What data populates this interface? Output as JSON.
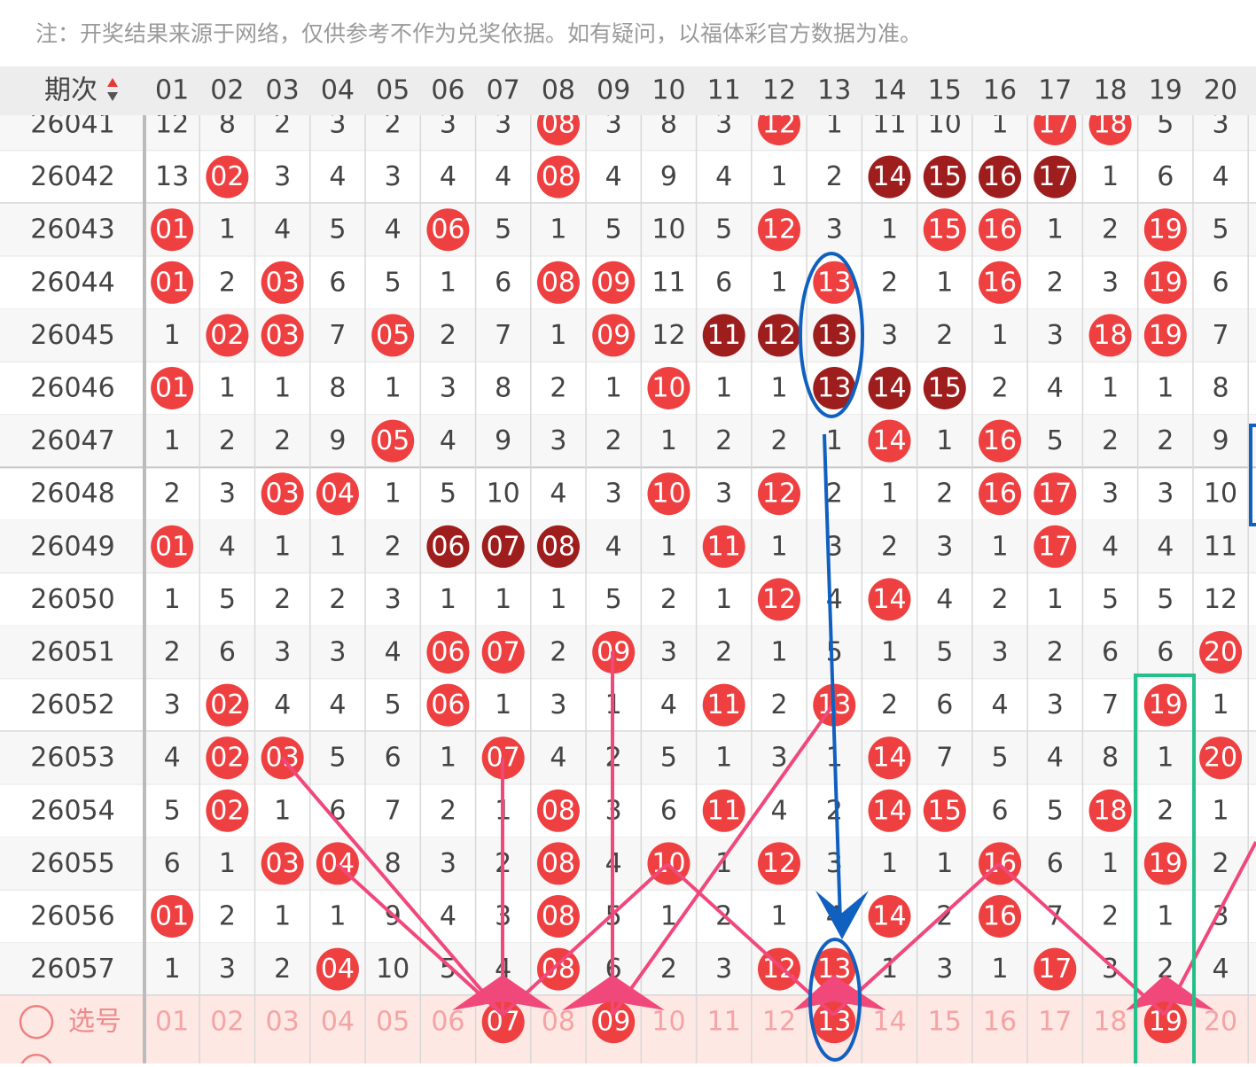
{
  "notice": "注：开奖结果来源于网络，仅供参考不作为兑奖依据。如有疑问，以福体彩官方数据为准。",
  "header": {
    "issue": "期次",
    "columns": [
      "01",
      "02",
      "03",
      "04",
      "05",
      "06",
      "07",
      "08",
      "09",
      "10",
      "11",
      "12",
      "13",
      "14",
      "15",
      "16",
      "17",
      "18",
      "19",
      "20"
    ]
  },
  "rows": [
    {
      "issue": "26041",
      "cells": [
        "12",
        "8",
        "2",
        "3",
        "2",
        "3",
        "3",
        {
          "text": "08",
          "ball": "#ee4040"
        },
        "3",
        "8",
        "3",
        {
          "text": "12",
          "ball": "#ee4040"
        },
        "1",
        "11",
        "10",
        "1",
        {
          "text": "17",
          "ball": "#ee4040"
        },
        {
          "text": "18",
          "ball": "#ee4040"
        },
        "5",
        "3"
      ]
    },
    {
      "issue": "26042",
      "cells": [
        "13",
        {
          "text": "02",
          "ball": "#ee4040"
        },
        "3",
        "4",
        "3",
        "4",
        "4",
        {
          "text": "08",
          "ball": "#ee4040"
        },
        "4",
        "9",
        "4",
        "1",
        "2",
        {
          "text": "14",
          "ball": "#9e1d1d"
        },
        {
          "text": "15",
          "ball": "#9e1d1d"
        },
        {
          "text": "16",
          "ball": "#9e1d1d"
        },
        {
          "text": "17",
          "ball": "#9e1d1d"
        },
        "1",
        "6",
        "4"
      ]
    },
    {
      "issue": "26043",
      "cells": [
        {
          "text": "01",
          "ball": "#ee4040"
        },
        "1",
        "4",
        "5",
        "4",
        {
          "text": "06",
          "ball": "#ee4040"
        },
        "5",
        "1",
        "5",
        "10",
        "5",
        {
          "text": "12",
          "ball": "#ee4040"
        },
        "3",
        "1",
        {
          "text": "15",
          "ball": "#ee4040"
        },
        {
          "text": "16",
          "ball": "#ee4040"
        },
        "1",
        "2",
        {
          "text": "19",
          "ball": "#ee4040"
        },
        "5"
      ]
    },
    {
      "issue": "26044",
      "cells": [
        {
          "text": "01",
          "ball": "#ee4040"
        },
        "2",
        {
          "text": "03",
          "ball": "#ee4040"
        },
        "6",
        "5",
        "1",
        "6",
        {
          "text": "08",
          "ball": "#ee4040"
        },
        {
          "text": "09",
          "ball": "#ee4040"
        },
        "11",
        "6",
        "1",
        {
          "text": "13",
          "ball": "#ee4040"
        },
        "2",
        "1",
        {
          "text": "16",
          "ball": "#ee4040"
        },
        "2",
        "3",
        {
          "text": "19",
          "ball": "#ee4040"
        },
        "6"
      ]
    },
    {
      "issue": "26045",
      "cells": [
        "1",
        {
          "text": "02",
          "ball": "#ee4040"
        },
        {
          "text": "03",
          "ball": "#ee4040"
        },
        "7",
        {
          "text": "05",
          "ball": "#ee4040"
        },
        "2",
        "7",
        "1",
        {
          "text": "09",
          "ball": "#ee4040"
        },
        "12",
        {
          "text": "11",
          "ball": "#9e1d1d"
        },
        {
          "text": "12",
          "ball": "#9e1d1d"
        },
        {
          "text": "13",
          "ball": "#9e1d1d"
        },
        "3",
        "2",
        "1",
        "3",
        {
          "text": "18",
          "ball": "#ee4040"
        },
        {
          "text": "19",
          "ball": "#ee4040"
        },
        "7"
      ]
    },
    {
      "issue": "26046",
      "cells": [
        {
          "text": "01",
          "ball": "#ee4040"
        },
        "1",
        "1",
        "8",
        "1",
        "3",
        "8",
        "2",
        "1",
        {
          "text": "10",
          "ball": "#ee4040"
        },
        "1",
        "1",
        {
          "text": "13",
          "ball": "#9e1d1d"
        },
        {
          "text": "14",
          "ball": "#9e1d1d"
        },
        {
          "text": "15",
          "ball": "#9e1d1d"
        },
        "2",
        "4",
        "1",
        "1",
        "8"
      ]
    },
    {
      "issue": "26047",
      "cells": [
        "1",
        "2",
        "2",
        "9",
        {
          "text": "05",
          "ball": "#ee4040"
        },
        "4",
        "9",
        "3",
        "2",
        "1",
        "2",
        "2",
        "1",
        {
          "text": "14",
          "ball": "#ee4040"
        },
        "1",
        {
          "text": "16",
          "ball": "#ee4040"
        },
        "5",
        "2",
        "2",
        "9"
      ]
    },
    {
      "issue": "26048",
      "cells": [
        "2",
        "3",
        {
          "text": "03",
          "ball": "#ee4040"
        },
        {
          "text": "04",
          "ball": "#ee4040"
        },
        "1",
        "5",
        "10",
        "4",
        "3",
        {
          "text": "10",
          "ball": "#ee4040"
        },
        "3",
        {
          "text": "12",
          "ball": "#ee4040"
        },
        "2",
        "1",
        "2",
        {
          "text": "16",
          "ball": "#ee4040"
        },
        {
          "text": "17",
          "ball": "#ee4040"
        },
        "3",
        "3",
        "10"
      ]
    },
    {
      "issue": "26049",
      "cells": [
        {
          "text": "01",
          "ball": "#ee4040"
        },
        "4",
        "1",
        "1",
        "2",
        {
          "text": "06",
          "ball": "#9e1d1d"
        },
        {
          "text": "07",
          "ball": "#9e1d1d"
        },
        {
          "text": "08",
          "ball": "#9e1d1d"
        },
        "4",
        "1",
        {
          "text": "11",
          "ball": "#ee4040"
        },
        "1",
        "3",
        "2",
        "3",
        "1",
        {
          "text": "17",
          "ball": "#ee4040"
        },
        "4",
        "4",
        "11"
      ]
    },
    {
      "issue": "26050",
      "cells": [
        "1",
        "5",
        "2",
        "2",
        "3",
        "1",
        "1",
        "1",
        "5",
        "2",
        "1",
        {
          "text": "12",
          "ball": "#ee4040"
        },
        "4",
        {
          "text": "14",
          "ball": "#ee4040"
        },
        "4",
        "2",
        "1",
        "5",
        "5",
        "12"
      ]
    },
    {
      "issue": "26051",
      "cells": [
        "2",
        "6",
        "3",
        "3",
        "4",
        {
          "text": "06",
          "ball": "#ee4040"
        },
        {
          "text": "07",
          "ball": "#ee4040"
        },
        "2",
        {
          "text": "09",
          "ball": "#ee4040"
        },
        "3",
        "2",
        "1",
        "5",
        "1",
        "5",
        "3",
        "2",
        "6",
        "6",
        {
          "text": "20",
          "ball": "#ee4040"
        }
      ]
    },
    {
      "issue": "26052",
      "cells": [
        "3",
        {
          "text": "02",
          "ball": "#ee4040"
        },
        "4",
        "4",
        "5",
        {
          "text": "06",
          "ball": "#ee4040"
        },
        "1",
        "3",
        "1",
        "4",
        {
          "text": "11",
          "ball": "#ee4040"
        },
        "2",
        {
          "text": "13",
          "ball": "#ee4040"
        },
        "2",
        "6",
        "4",
        "3",
        "7",
        {
          "text": "19",
          "ball": "#ee4040"
        },
        "1"
      ]
    },
    {
      "issue": "26053",
      "cells": [
        "4",
        {
          "text": "02",
          "ball": "#ee4040"
        },
        {
          "text": "03",
          "ball": "#ee4040"
        },
        "5",
        "6",
        "1",
        {
          "text": "07",
          "ball": "#ee4040"
        },
        "4",
        "2",
        "5",
        "1",
        "3",
        "1",
        {
          "text": "14",
          "ball": "#ee4040"
        },
        "7",
        "5",
        "4",
        "8",
        "1",
        {
          "text": "20",
          "ball": "#ee4040"
        }
      ]
    },
    {
      "issue": "26054",
      "cells": [
        "5",
        {
          "text": "02",
          "ball": "#ee4040"
        },
        "1",
        "6",
        "7",
        "2",
        "1",
        {
          "text": "08",
          "ball": "#ee4040"
        },
        "3",
        "6",
        {
          "text": "11",
          "ball": "#ee4040"
        },
        "4",
        "2",
        {
          "text": "14",
          "ball": "#ee4040"
        },
        {
          "text": "15",
          "ball": "#ee4040"
        },
        "6",
        "5",
        {
          "text": "18",
          "ball": "#ee4040"
        },
        "2",
        "1"
      ]
    },
    {
      "issue": "26055",
      "cells": [
        "6",
        "1",
        {
          "text": "03",
          "ball": "#ee4040"
        },
        {
          "text": "04",
          "ball": "#ee4040"
        },
        "8",
        "3",
        "2",
        {
          "text": "08",
          "ball": "#ee4040"
        },
        "4",
        {
          "text": "10",
          "ball": "#ee4040"
        },
        "1",
        {
          "text": "12",
          "ball": "#ee4040"
        },
        "3",
        "1",
        "1",
        {
          "text": "16",
          "ball": "#ee4040"
        },
        "6",
        "1",
        {
          "text": "19",
          "ball": "#ee4040"
        },
        "2"
      ]
    },
    {
      "issue": "26056",
      "cells": [
        {
          "text": "01",
          "ball": "#ee4040"
        },
        "2",
        "1",
        "1",
        "9",
        "4",
        "3",
        {
          "text": "08",
          "ball": "#ee4040"
        },
        "5",
        "1",
        "2",
        "1",
        "4",
        {
          "text": "14",
          "ball": "#ee4040"
        },
        "2",
        {
          "text": "16",
          "ball": "#ee4040"
        },
        "7",
        "2",
        "1",
        "3"
      ]
    },
    {
      "issue": "26057",
      "cells": [
        "1",
        "3",
        "2",
        {
          "text": "04",
          "ball": "#ee4040"
        },
        "10",
        "5",
        "4",
        {
          "text": "08",
          "ball": "#ee4040"
        },
        "6",
        "2",
        "3",
        {
          "text": "12",
          "ball": "#ee4040"
        },
        {
          "text": "13",
          "ball": "#ee4040"
        },
        "1",
        "3",
        "1",
        {
          "text": "17",
          "ball": "#ee4040"
        },
        "3",
        "2",
        "4"
      ]
    }
  ],
  "pick_row": {
    "label": "选号",
    "cells": [
      "01",
      "02",
      "03",
      "04",
      "05",
      "06",
      {
        "text": "07",
        "ball": "#ee4040"
      },
      "08",
      {
        "text": "09",
        "ball": "#ee4040"
      },
      "10",
      "11",
      "12",
      {
        "text": "13",
        "ball": "#ee4040"
      },
      "14",
      "15",
      "16",
      "17",
      "18",
      {
        "text": "19",
        "ball": "#ee4040"
      },
      "20"
    ]
  }
}
